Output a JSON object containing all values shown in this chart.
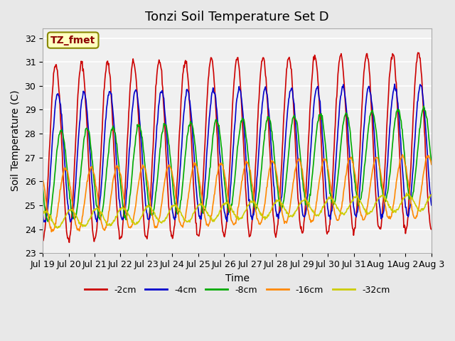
{
  "title": "Tonzi Soil Temperature Set D",
  "xlabel": "Time",
  "ylabel": "Soil Temperature (C)",
  "ylim": [
    23.0,
    32.4
  ],
  "yticks": [
    23.0,
    24.0,
    25.0,
    26.0,
    27.0,
    28.0,
    29.0,
    30.0,
    31.0,
    32.0
  ],
  "series": [
    {
      "label": "-2cm",
      "color": "#CC0000",
      "lw": 1.2
    },
    {
      "label": "-4cm",
      "color": "#0000CC",
      "lw": 1.2
    },
    {
      "label": "-8cm",
      "color": "#00AA00",
      "lw": 1.2
    },
    {
      "label": "-16cm",
      "color": "#FF8800",
      "lw": 1.2
    },
    {
      "label": "-32cm",
      "color": "#CCCC00",
      "lw": 1.2
    }
  ],
  "xtick_labels": [
    "Jul 19",
    "Jul 20",
    "Jul 21",
    "Jul 22",
    "Jul 23",
    "Jul 24",
    "Jul 25",
    "Jul 26",
    "Jul 27",
    "Jul 28",
    "Jul 29",
    "Jul 30",
    "Jul 31",
    "Aug 1",
    "Aug 2",
    "Aug 3"
  ],
  "n_xticks": 16,
  "legend_label": "TZ_fmet",
  "legend_bg": "#FFFFC0",
  "legend_border": "#888800",
  "bg_color": "#E8E8E8",
  "plot_bg": "#F0F0F0",
  "title_fontsize": 13,
  "axis_fontsize": 10,
  "tick_fontsize": 9,
  "legend_fontsize": 9
}
